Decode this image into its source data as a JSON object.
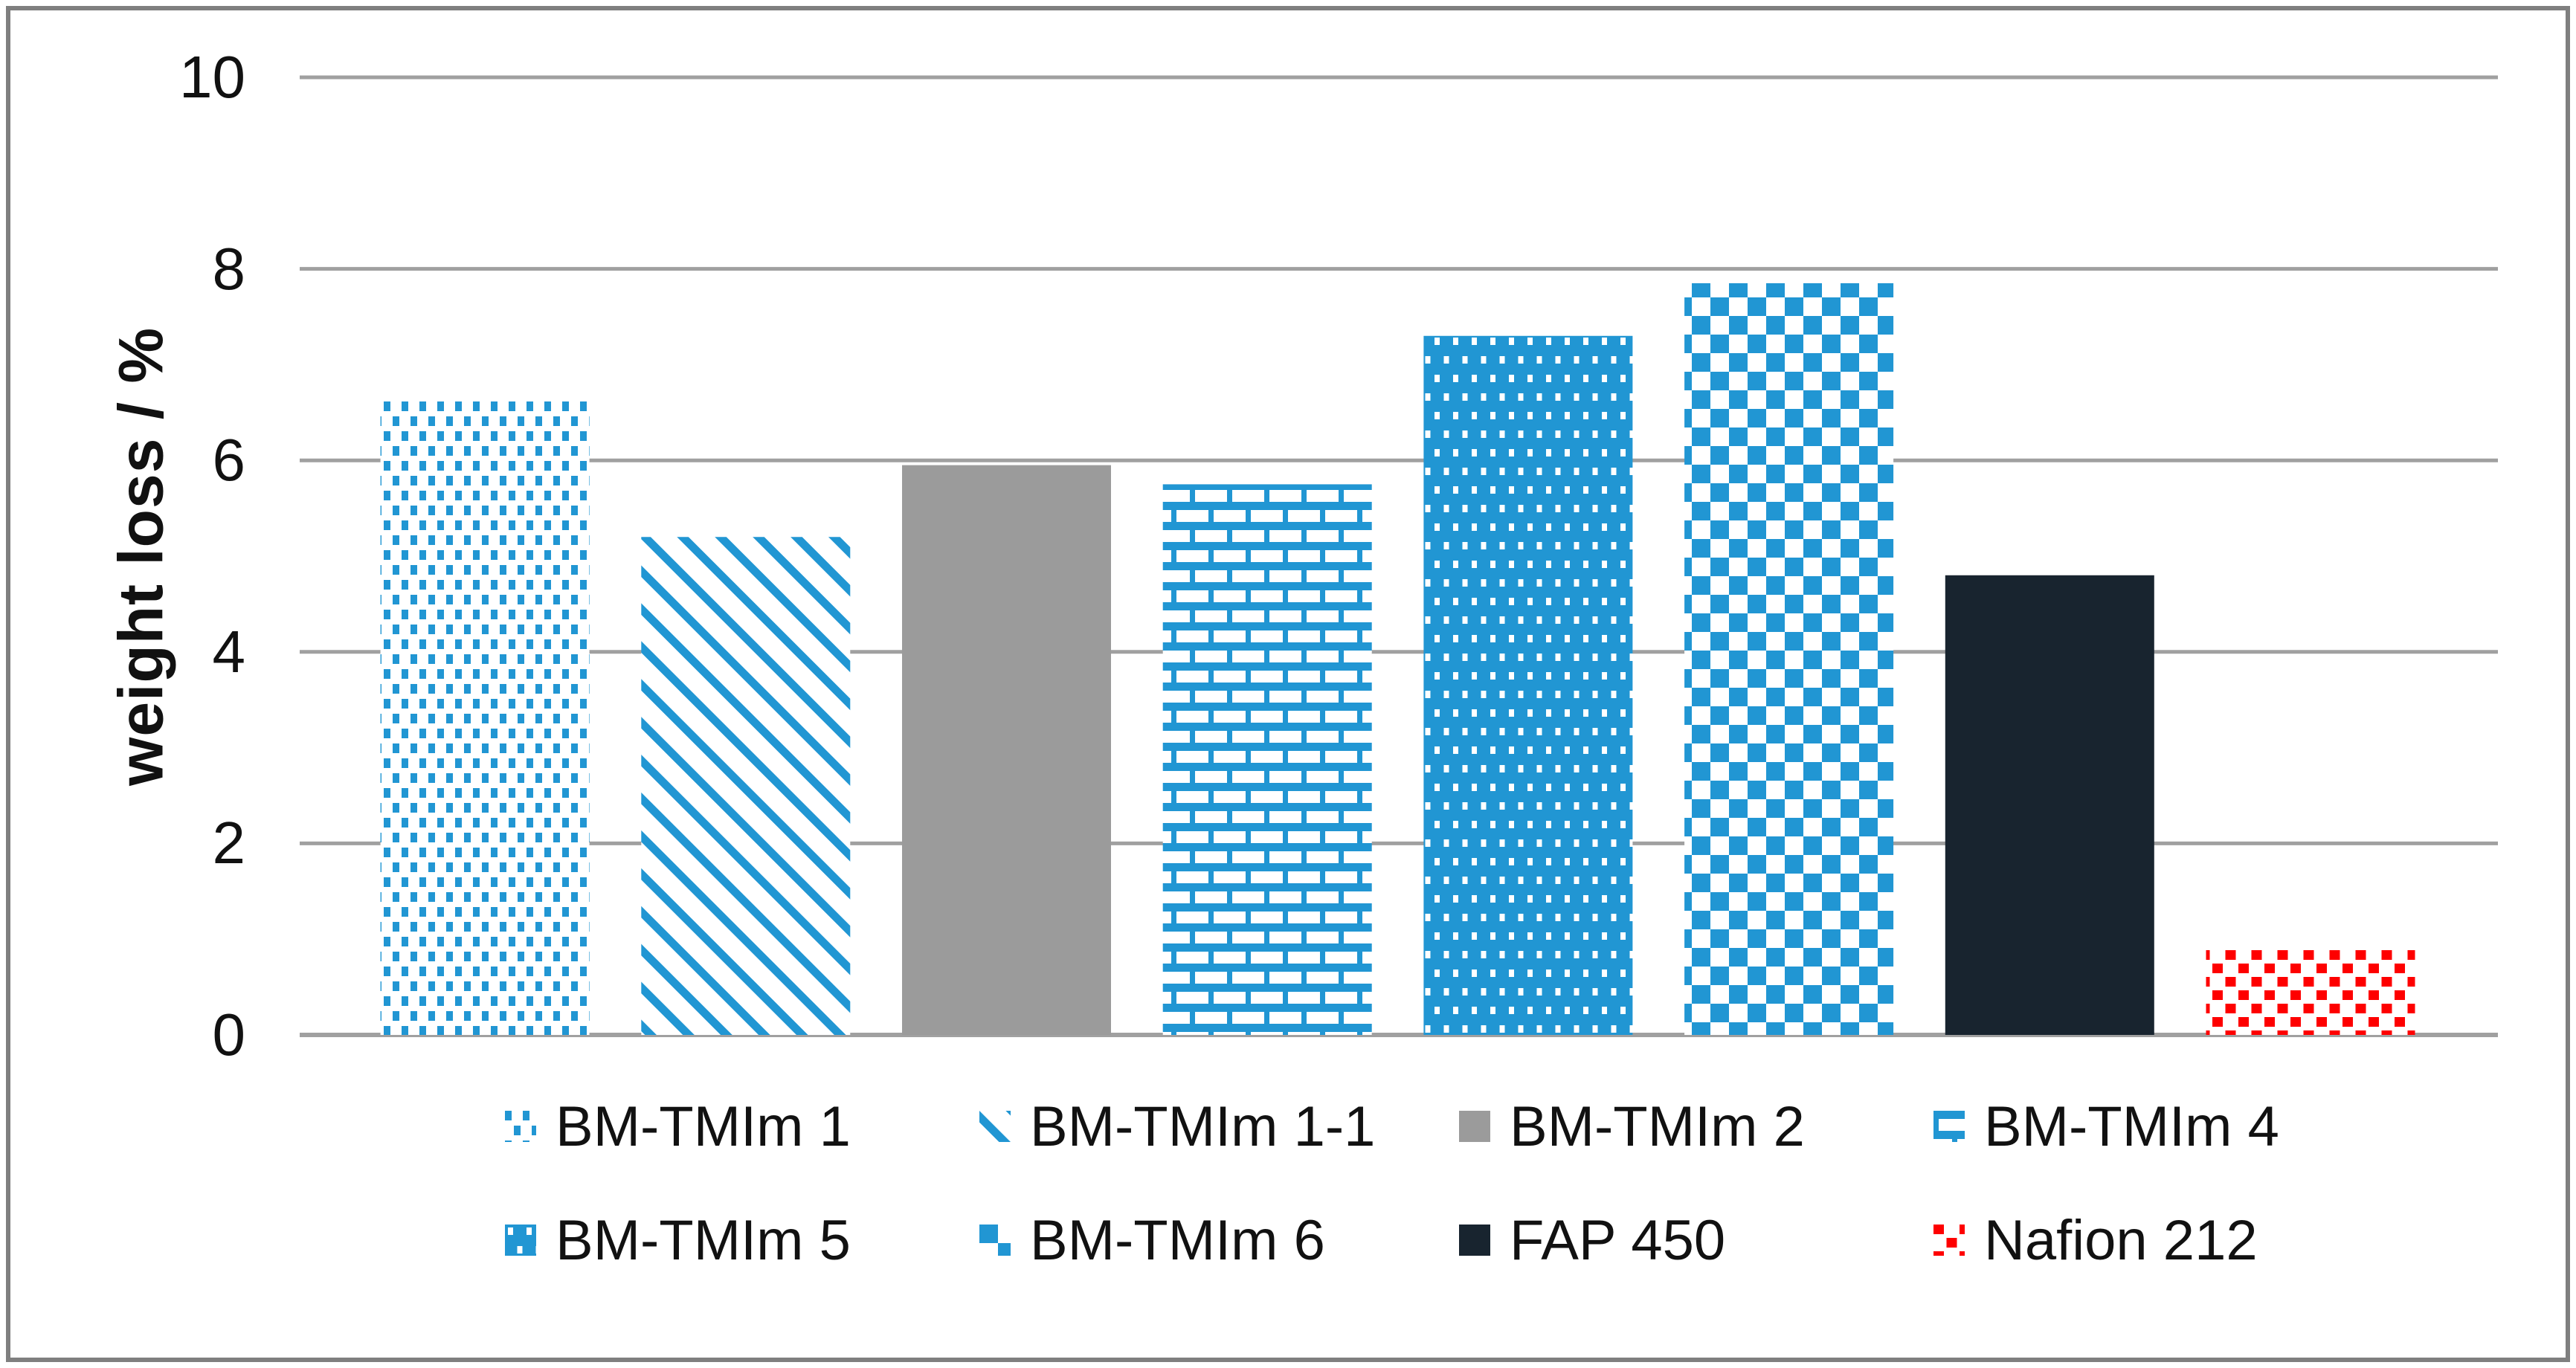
{
  "y_axis": {
    "title": "weight loss / %",
    "ticks": [
      "10",
      "8",
      "6",
      "4",
      "2",
      "0"
    ]
  },
  "legend": {
    "items": [
      {
        "label": "BM-TMIm 1",
        "pattern": "blue-dots"
      },
      {
        "label": "BM-TMIm 1-1",
        "pattern": "blue-diagonal-stripes"
      },
      {
        "label": "BM-TMIm 2",
        "pattern": "solid-gray"
      },
      {
        "label": "BM-TMIm 4",
        "pattern": "blue-bricks"
      },
      {
        "label": "BM-TMIm 5",
        "pattern": "blue-dense-dots"
      },
      {
        "label": "BM-TMIm 6",
        "pattern": "blue-checkerboard"
      },
      {
        "label": "FAP 450",
        "pattern": "solid-navy"
      },
      {
        "label": "Nafion 212",
        "pattern": "red-checker"
      }
    ]
  },
  "chart_data": {
    "type": "bar",
    "title": "",
    "categories": [
      "BM-TMIm 1",
      "BM-TMIm 1-1",
      "BM-TMIm 2",
      "BM-TMIm 4",
      "BM-TMIm 5",
      "BM-TMIm 6",
      "FAP 450",
      "Nafion 212"
    ],
    "values": [
      6.65,
      5.2,
      5.95,
      5.75,
      7.3,
      7.85,
      4.8,
      0.9
    ],
    "patterns": [
      "blue-dots",
      "blue-diagonal-stripes",
      "solid-gray",
      "blue-bricks",
      "blue-dense-dots",
      "blue-checkerboard",
      "solid-navy",
      "red-checker"
    ],
    "xlabel": "",
    "ylabel": "weight loss / %",
    "ylim": [
      0,
      10
    ],
    "ytick_step": 2,
    "grid": "horizontal",
    "legend_position": "bottom",
    "colors": {
      "blue": "#2196d3",
      "gray": "#9b9b9b",
      "navy": "#18242f",
      "red": "#fe0000",
      "gridline": "#a0a0a0",
      "border": "#7f7f7f"
    }
  }
}
